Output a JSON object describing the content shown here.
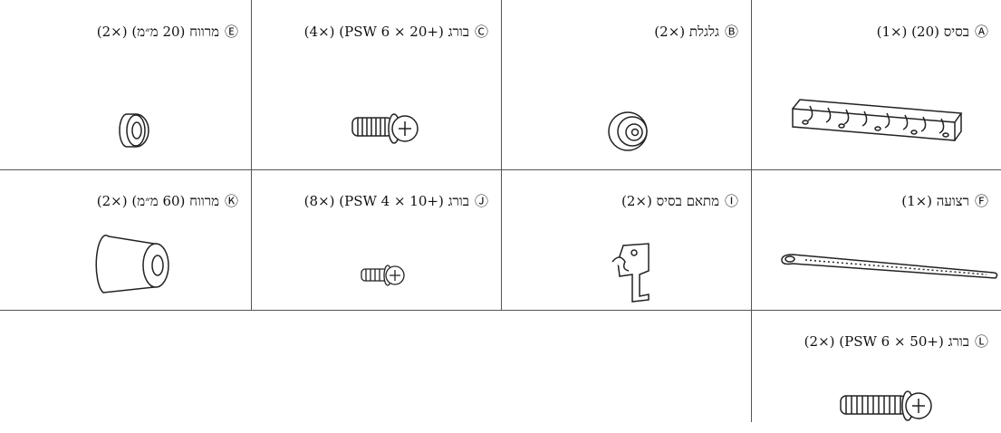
{
  "parts": [
    {
      "marker": "Ⓐ",
      "label": "בסיס (20) (×1)"
    },
    {
      "marker": "Ⓑ",
      "label": "גלגלת (×2)"
    },
    {
      "marker": "Ⓒ",
      "label": "בורג (+PSW 6 × 20) (×4)"
    },
    {
      "marker": "Ⓔ",
      "label": "מרווח (20 מ״מ) (×2)"
    },
    {
      "marker": "Ⓕ",
      "label": "רצועה (×1)"
    },
    {
      "marker": "Ⓘ",
      "label": "מתאם בסיס (×2)"
    },
    {
      "marker": "Ⓙ",
      "label": "בורג (+PSW 4 × 10) (×8)"
    },
    {
      "marker": "Ⓚ",
      "label": "מרווח (60 מ״מ) (×2)"
    },
    {
      "marker": "Ⓛ",
      "label": "בורג (+PSW 6 × 50) (×2)"
    }
  ]
}
